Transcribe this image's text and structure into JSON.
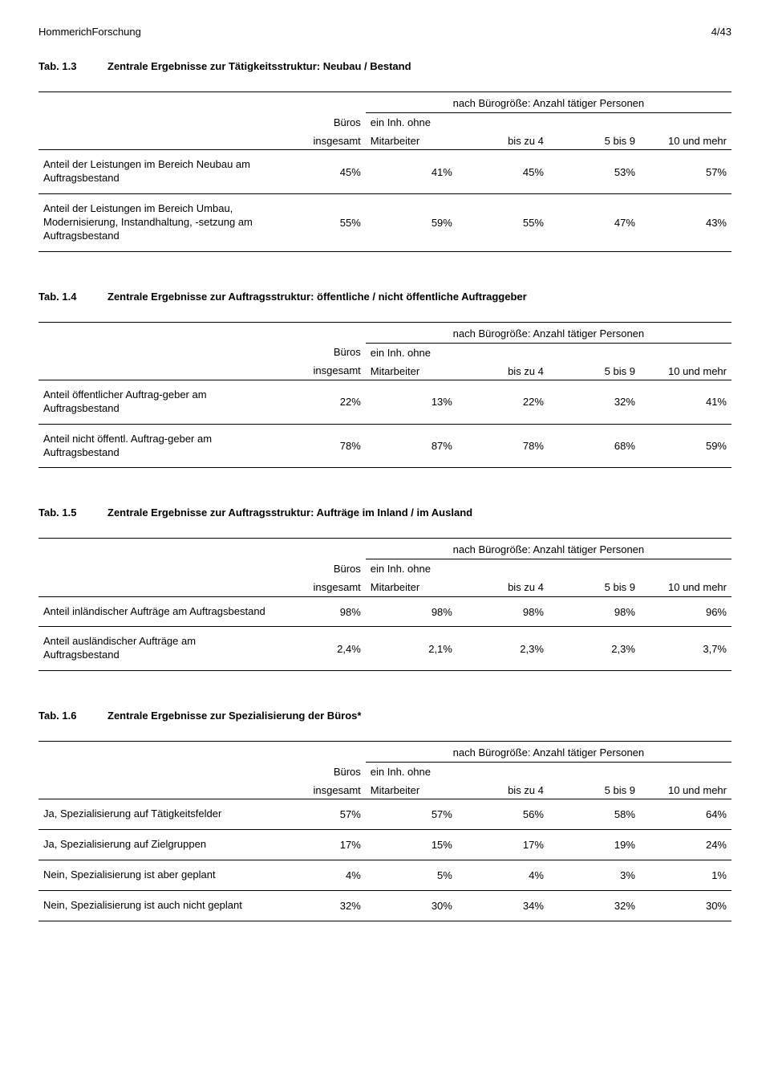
{
  "header": {
    "left": "HommerichForschung",
    "right": "4/43"
  },
  "common": {
    "super_header": "nach Bürogröße: Anzahl tätiger Personen",
    "col_bueros_l1": "Büros",
    "col_bueros_l2": "insgesamt",
    "col_mitarb_l1": "ein Inh. ohne",
    "col_mitarb_l2": "Mitarbeiter",
    "col_bis4": "bis zu 4",
    "col_5bis9": "5 bis 9",
    "col_10mehr": "10 und mehr"
  },
  "t13": {
    "num": "Tab. 1.3",
    "title": "Zentrale Ergebnisse zur Tätigkeitsstruktur: Neubau / Bestand",
    "rows": [
      {
        "label": "Anteil der Leistungen im Bereich Neubau am Auftragsbestand",
        "v": [
          "45%",
          "41%",
          "45%",
          "53%",
          "57%"
        ]
      },
      {
        "label": "Anteil der Leistungen im Bereich Umbau, Modernisierung, Instandhaltung, -setzung am Auftragsbestand",
        "v": [
          "55%",
          "59%",
          "55%",
          "47%",
          "43%"
        ]
      }
    ]
  },
  "t14": {
    "num": "Tab. 1.4",
    "title": "Zentrale Ergebnisse zur Auftragsstruktur: öffentliche / nicht öffentliche Auftraggeber",
    "rows": [
      {
        "label": "Anteil öffentlicher Auftrag-geber am Auftragsbestand",
        "v": [
          "22%",
          "13%",
          "22%",
          "32%",
          "41%"
        ]
      },
      {
        "label": "Anteil nicht öffentl. Auftrag-geber am Auftragsbestand",
        "v": [
          "78%",
          "87%",
          "78%",
          "68%",
          "59%"
        ]
      }
    ]
  },
  "t15": {
    "num": "Tab. 1.5",
    "title": "Zentrale Ergebnisse zur Auftragsstruktur: Aufträge im Inland / im Ausland",
    "rows": [
      {
        "label": "Anteil inländischer Aufträge am Auftragsbestand",
        "v": [
          "98%",
          "98%",
          "98%",
          "98%",
          "96%"
        ]
      },
      {
        "label": "Anteil ausländischer Aufträge am Auftragsbestand",
        "v": [
          "2,4%",
          "2,1%",
          "2,3%",
          "2,3%",
          "3,7%"
        ]
      }
    ]
  },
  "t16": {
    "num": "Tab. 1.6",
    "title": "Zentrale Ergebnisse zur Spezialisierung der Büros*",
    "rows": [
      {
        "label": "Ja, Spezialisierung auf Tätigkeitsfelder",
        "v": [
          "57%",
          "57%",
          "56%",
          "58%",
          "64%"
        ]
      },
      {
        "label": "Ja, Spezialisierung auf Zielgruppen",
        "v": [
          "17%",
          "15%",
          "17%",
          "19%",
          "24%"
        ]
      },
      {
        "label": "Nein, Spezialisierung ist aber geplant",
        "v": [
          "4%",
          "5%",
          "4%",
          "3%",
          "1%"
        ]
      },
      {
        "label": "Nein, Spezialisierung ist auch nicht geplant",
        "v": [
          "32%",
          "30%",
          "34%",
          "32%",
          "30%"
        ]
      }
    ]
  }
}
